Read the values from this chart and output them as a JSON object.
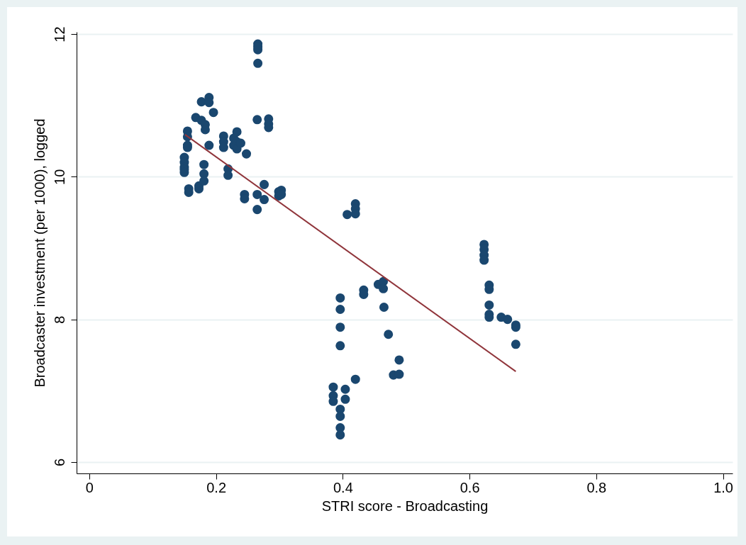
{
  "chart_data": {
    "type": "scatter",
    "xlabel": "STRI score - Broadcasting",
    "ylabel": "Broadcaster investment (per 1000), logged",
    "xlim": [
      -0.02,
      1.015
    ],
    "ylim": [
      5.84,
      12.03
    ],
    "xticks": [
      0,
      0.2,
      0.4,
      0.6,
      0.8,
      {
        "value": 1,
        "label": "1.0"
      }
    ],
    "yticks": [
      6,
      8,
      10,
      12
    ],
    "grid": "y",
    "series": [
      {
        "color": "#1a476f",
        "marker": "circle",
        "x": [
          0.15,
          0.15,
          0.15,
          0.15,
          0.15,
          0.155,
          0.155,
          0.155,
          0.155,
          0.157,
          0.157,
          0.168,
          0.173,
          0.173,
          0.177,
          0.177,
          0.181,
          0.181,
          0.181,
          0.183,
          0.183,
          0.189,
          0.189,
          0.189,
          0.196,
          0.212,
          0.212,
          0.212,
          0.219,
          0.219,
          0.228,
          0.228,
          0.233,
          0.233,
          0.233,
          0.239,
          0.248,
          0.245,
          0.245,
          0.265,
          0.265,
          0.265,
          0.266,
          0.266,
          0.266,
          0.266,
          0.276,
          0.276,
          0.283,
          0.283,
          0.283,
          0.299,
          0.299,
          0.303,
          0.303,
          0.407,
          0.42,
          0.42,
          0.42,
          0.396,
          0.396,
          0.396,
          0.396,
          0.385,
          0.385,
          0.385,
          0.404,
          0.404,
          0.396,
          0.396,
          0.396,
          0.396,
          0.433,
          0.433,
          0.456,
          0.464,
          0.464,
          0.465,
          0.472,
          0.42,
          0.48,
          0.489,
          0.489,
          0.623,
          0.623,
          0.623,
          0.623,
          0.631,
          0.631,
          0.631,
          0.631,
          0.631,
          0.65,
          0.66,
          0.673,
          0.673,
          0.673
        ],
        "values": [
          10.27,
          10.2,
          10.13,
          10.1,
          10.06,
          10.64,
          10.56,
          10.44,
          10.41,
          9.83,
          9.78,
          10.83,
          9.87,
          9.83,
          11.05,
          10.79,
          10.17,
          10.04,
          9.94,
          10.73,
          10.66,
          11.11,
          11.04,
          10.44,
          10.9,
          10.57,
          10.49,
          10.41,
          10.11,
          10.02,
          10.54,
          10.44,
          10.63,
          10.49,
          10.39,
          10.47,
          10.32,
          9.75,
          9.69,
          10.8,
          9.54,
          9.75,
          11.86,
          11.82,
          11.78,
          11.59,
          9.89,
          9.68,
          10.81,
          10.74,
          10.69,
          9.79,
          9.73,
          9.81,
          9.75,
          9.47,
          9.62,
          9.55,
          9.48,
          8.3,
          8.14,
          7.89,
          7.63,
          7.05,
          6.93,
          6.85,
          7.02,
          6.88,
          6.74,
          6.64,
          6.48,
          6.38,
          8.41,
          8.35,
          8.49,
          8.53,
          8.43,
          8.17,
          7.79,
          7.16,
          7.22,
          7.43,
          7.23,
          9.05,
          8.98,
          8.9,
          8.83,
          8.48,
          8.42,
          8.2,
          8.07,
          8.03,
          8.03,
          8.0,
          7.92,
          7.89,
          7.65
        ]
      },
      {
        "type": "line",
        "color": "#90353b",
        "x": [
          0.151,
          0.673
        ],
        "values": [
          10.59,
          7.27
        ]
      }
    ]
  }
}
